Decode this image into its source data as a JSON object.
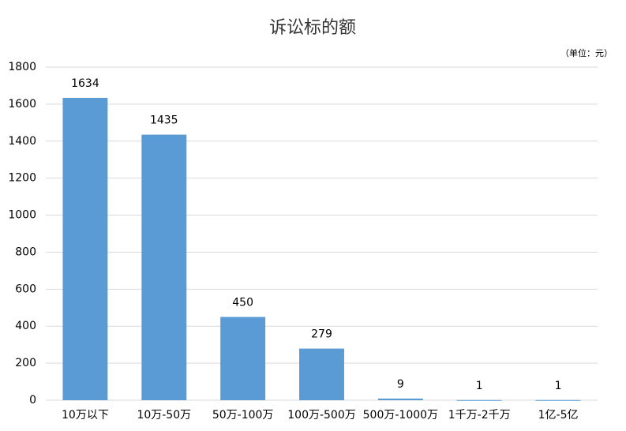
{
  "chart_data": {
    "type": "bar",
    "title": "诉讼标的额",
    "unit_note": "（单位：元）",
    "categories": [
      "10万以下",
      "10万-50万",
      "50万-100万",
      "100万-500万",
      "500万-1000万",
      "1千万-2千万",
      "1亿-5亿"
    ],
    "values": [
      1634,
      1435,
      450,
      279,
      9,
      1,
      1
    ],
    "color": "#5b9bd5",
    "ylim": [
      0,
      1800
    ],
    "yticks": [
      0,
      200,
      400,
      600,
      800,
      1000,
      1200,
      1400,
      1600,
      1800
    ],
    "grid": true
  }
}
